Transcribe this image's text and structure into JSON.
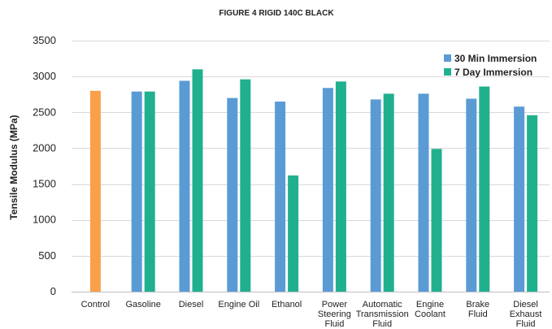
{
  "chart_data": {
    "type": "bar",
    "title": "FIGURE 4 RIGID 140C BLACK",
    "ylabel": "Tensile Modulus (MPa)",
    "xlabel": "",
    "ylim": [
      0,
      3500
    ],
    "yticks": [
      0,
      500,
      1000,
      1500,
      2000,
      2500,
      3000,
      3500
    ],
    "grid": true,
    "legend_position": "top-right",
    "categories": [
      [
        "Control"
      ],
      [
        "Gasoline"
      ],
      [
        "Diesel"
      ],
      [
        "Engine Oil"
      ],
      [
        "Ethanol"
      ],
      [
        "Power",
        "Steering",
        "Fluid"
      ],
      [
        "Automatic",
        "Transmission",
        "Fluid"
      ],
      [
        "Engine",
        "Coolant"
      ],
      [
        "Brake",
        "Fluid"
      ],
      [
        "Diesel",
        "Exhaust",
        "Fluid"
      ]
    ],
    "control": {
      "value": 2800,
      "color": "#F9A04B"
    },
    "series": [
      {
        "name": "30 Min Immersion",
        "color": "#5B9BD5",
        "values": [
          null,
          2790,
          2940,
          2700,
          2650,
          2840,
          2680,
          2760,
          2690,
          2580
        ]
      },
      {
        "name": "7 Day Immersion",
        "color": "#21B08E",
        "values": [
          null,
          2790,
          3100,
          2960,
          1620,
          2930,
          2760,
          1990,
          2860,
          2460
        ]
      }
    ]
  }
}
